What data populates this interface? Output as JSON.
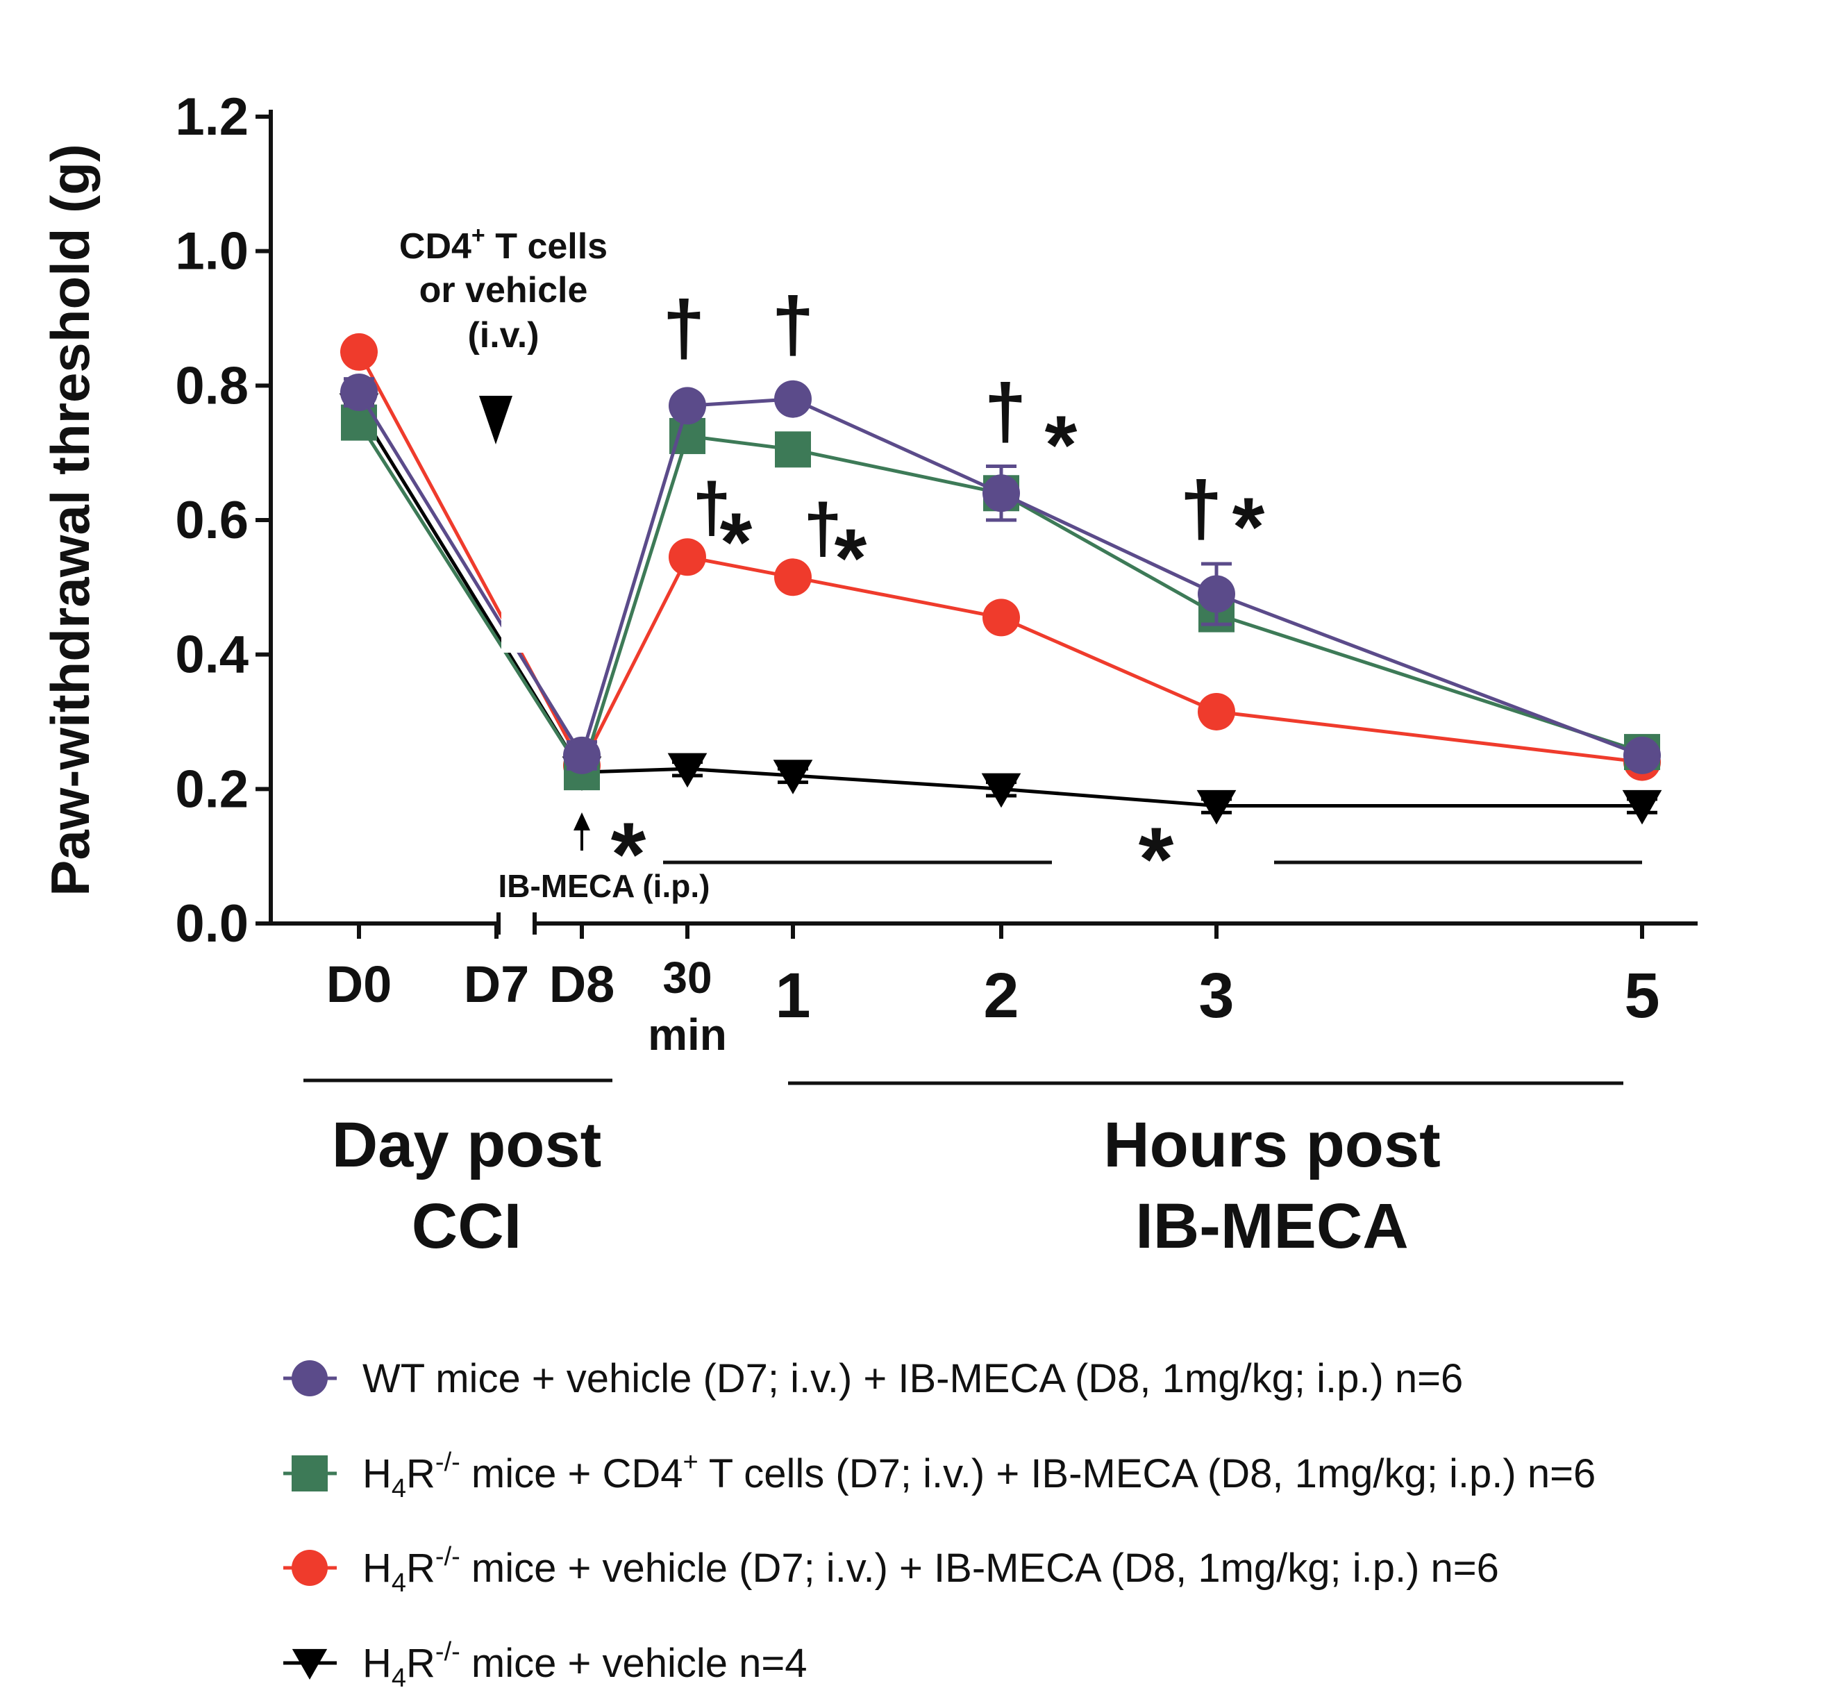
{
  "chart_data": {
    "type": "line",
    "ylabel": "Paw-withdrawal threshold (g)",
    "ylim": [
      0,
      1.2
    ],
    "yticks": [
      "0.0",
      "0.2",
      "0.4",
      "0.6",
      "0.8",
      "1.0",
      "1.2"
    ],
    "x": [
      "D0",
      "D7",
      "D8",
      "30 min",
      "1",
      "2",
      "3",
      "5"
    ],
    "xtick_labels": [
      {
        "l1": "D0",
        "l2": ""
      },
      {
        "l1": "D7",
        "l2": ""
      },
      {
        "l1": "D8",
        "l2": ""
      },
      {
        "l1": "30",
        "l2": "min"
      },
      {
        "l1": "1",
        "l2": ""
      },
      {
        "l1": "2",
        "l2": ""
      },
      {
        "l1": "3",
        "l2": ""
      },
      {
        "l1": "5",
        "l2": ""
      }
    ],
    "groups": [
      {
        "l1": "Day post",
        "l2": "CCI"
      },
      {
        "l1": "Hours post",
        "l2": "IB-MECA"
      }
    ],
    "series": [
      {
        "name": "WT mice + vehicle (D7; i.v.) + IB-MECA (D8, 1mg/kg; i.p.) n=6",
        "label_parts": {
          "pre": "WT mice + vehicle (D7; i.v.) + IB-MECA (D8, 1mg/kg; i.p.) n=6"
        },
        "color": "#5b4b8a",
        "marker": "circle",
        "values": [
          0.79,
          null,
          0.25,
          0.77,
          0.78,
          0.64,
          0.49,
          0.25
        ],
        "errors": [
          0.02,
          null,
          0.02,
          0.01,
          0.01,
          0.04,
          0.045,
          0.01
        ]
      },
      {
        "name": "H4R-/- mice + CD4+ T cells (D7; i.v.) + IB-MECA (D8, 1mg/kg; i.p.) n=6",
        "label_parts": {
          "pre": "H",
          "sub": "4",
          "mid": "R",
          "sup": "-/-",
          "post": " mice + CD4",
          "sup2": "+",
          "post2": " T cells (D7; i.v.) + IB-MECA (D8, 1mg/kg; i.p.) n=6"
        },
        "color": "#3d7a57",
        "marker": "square",
        "values": [
          0.745,
          null,
          0.225,
          0.725,
          0.705,
          0.64,
          0.46,
          0.255
        ],
        "errors": [
          0.015,
          null,
          0.015,
          0.015,
          0.01,
          0.02,
          0.02,
          0.01
        ]
      },
      {
        "name": "H4R-/- mice + vehicle (D7; i.v.) + IB-MECA (D8, 1mg/kg; i.p.) n=6",
        "label_parts": {
          "pre": "H",
          "sub": "4",
          "mid": "R",
          "sup": "-/-",
          "post": " mice + vehicle (D7; i.v.) + IB-MECA (D8, 1mg/kg; i.p.) n=6"
        },
        "color": "#ef3b2c",
        "marker": "circle",
        "values": [
          0.85,
          null,
          0.235,
          0.545,
          0.515,
          0.455,
          0.315,
          0.24
        ],
        "errors": [
          0.01,
          null,
          0.01,
          0.01,
          0.01,
          0.01,
          0.01,
          0.01
        ]
      },
      {
        "name": "H4R-/- mice + vehicle n=4",
        "label_parts": {
          "pre": "H",
          "sub": "4",
          "mid": "R",
          "sup": "-/-",
          "post": " mice + vehicle n=4"
        },
        "color": "#000000",
        "marker": "triangle-down",
        "values": [
          0.765,
          null,
          0.225,
          0.23,
          0.22,
          0.2,
          0.175,
          0.175
        ],
        "errors": [
          0.01,
          null,
          0.02,
          0.01,
          0.01,
          0.01,
          0.01,
          0.01
        ]
      }
    ],
    "annotations": {
      "cd4_line1": "CD4",
      "cd4_sup": "+",
      "cd4_line1_rest": " T cells",
      "cd4_line2": "or vehicle",
      "cd4_line3": "(i.v.)",
      "ibmeca": "IB-MECA (i.p.)",
      "dagger": "†",
      "star": "*"
    }
  }
}
